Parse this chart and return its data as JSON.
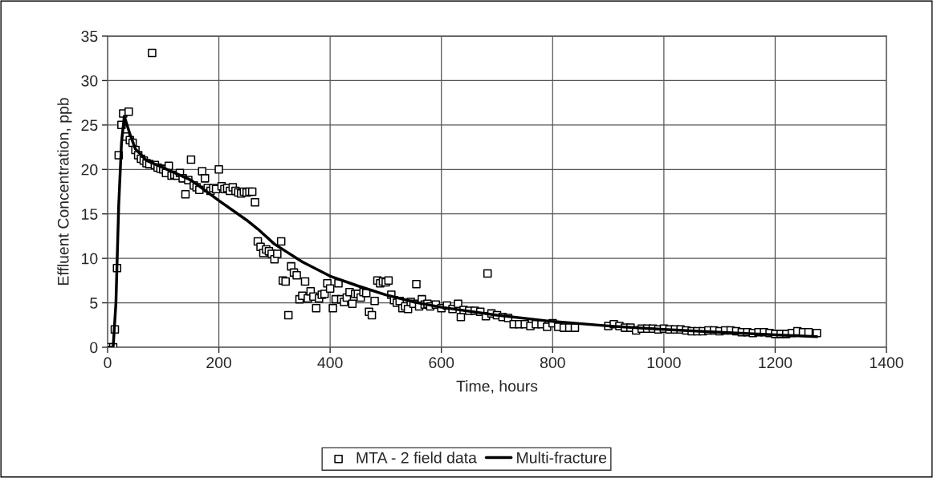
{
  "chart_data": {
    "type": "scatter",
    "xlabel": "Time, hours",
    "ylabel": "Effluent Concentration, ppb",
    "xlim": [
      0,
      1400
    ],
    "xticks": [
      0,
      200,
      400,
      600,
      800,
      1000,
      1200,
      1400
    ],
    "ylim": [
      0,
      35
    ],
    "yticks": [
      0,
      5,
      10,
      15,
      20,
      25,
      30,
      35
    ],
    "grid": true,
    "legend": "bottom",
    "series": [
      {
        "name": "MTA - 2 field data",
        "marker": "square",
        "color": "#000000",
        "x": [
          5,
          10,
          13,
          17,
          20,
          25,
          28,
          32,
          38,
          40,
          45,
          50,
          55,
          60,
          65,
          70,
          75,
          80,
          85,
          90,
          95,
          100,
          105,
          110,
          115,
          120,
          125,
          130,
          135,
          140,
          145,
          150,
          155,
          160,
          165,
          170,
          175,
          180,
          185,
          190,
          195,
          200,
          205,
          210,
          215,
          220,
          225,
          230,
          235,
          240,
          245,
          250,
          255,
          260,
          265,
          270,
          275,
          280,
          285,
          290,
          295,
          300,
          305,
          312,
          315,
          320,
          325,
          330,
          335,
          340,
          345,
          350,
          355,
          360,
          365,
          370,
          375,
          380,
          385,
          390,
          395,
          400,
          405,
          410,
          415,
          420,
          425,
          430,
          435,
          440,
          445,
          450,
          455,
          460,
          465,
          470,
          475,
          480,
          485,
          490,
          495,
          500,
          505,
          510,
          515,
          520,
          525,
          530,
          535,
          540,
          545,
          550,
          555,
          560,
          565,
          570,
          575,
          580,
          590,
          600,
          610,
          620,
          630,
          635,
          640,
          650,
          660,
          670,
          680,
          683,
          690,
          700,
          710,
          720,
          730,
          740,
          750,
          760,
          770,
          780,
          790,
          800,
          810,
          820,
          830,
          840,
          900,
          910,
          920,
          930,
          940,
          950,
          960,
          970,
          980,
          990,
          1000,
          1010,
          1020,
          1030,
          1040,
          1050,
          1060,
          1070,
          1080,
          1090,
          1100,
          1110,
          1120,
          1130,
          1140,
          1150,
          1160,
          1170,
          1180,
          1190,
          1200,
          1210,
          1220,
          1230,
          1240,
          1250,
          1260,
          1275
        ],
        "values": [
          0,
          0,
          2,
          8.9,
          21.6,
          25,
          26.3,
          23.7,
          26.5,
          23.3,
          23,
          22.2,
          21.6,
          21.2,
          21,
          20.7,
          20.6,
          33.1,
          20.5,
          20.2,
          20.1,
          20.0,
          19.6,
          20.4,
          19.3,
          19.4,
          19.3,
          19.6,
          19.0,
          17.2,
          18.8,
          21.1,
          18.2,
          18.0,
          17.7,
          19.8,
          19.0,
          17.9,
          17.6,
          17.9,
          17.8,
          20.0,
          18.1,
          17.8,
          17.9,
          17.6,
          18.0,
          17.6,
          17.4,
          17.3,
          17.5,
          17.4,
          17.5,
          17.5,
          16.3,
          11.9,
          11.3,
          10.6,
          11.0,
          10.8,
          10.5,
          9.9,
          10.5,
          11.9,
          7.5,
          7.4,
          3.6,
          9.1,
          8.4,
          8.1,
          5.4,
          5.8,
          7.4,
          5.5,
          6.3,
          5.7,
          4.4,
          5.5,
          5.9,
          6.0,
          7.2,
          6.6,
          4.4,
          5.4,
          7.2,
          5.4,
          5.1,
          5.6,
          6.2,
          4.9,
          6.0,
          6.0,
          5.6,
          6.2,
          6.1,
          4.0,
          3.6,
          5.2,
          7.5,
          7.2,
          7.4,
          7.3,
          7.5,
          5.9,
          5.3,
          5.0,
          5.2,
          4.4,
          4.6,
          4.3,
          5.1,
          4.9,
          7.1,
          4.6,
          5.4,
          4.8,
          4.9,
          4.6,
          4.8,
          4.4,
          4.7,
          4.3,
          4.9,
          3.4,
          4.2,
          4.1,
          4.1,
          4.0,
          3.5,
          8.3,
          3.8,
          3.6,
          3.4,
          3.3,
          2.6,
          2.6,
          2.6,
          2.4,
          2.6,
          2.6,
          2.3,
          2.7,
          2.3,
          2.2,
          2.2,
          2.2,
          2.4,
          2.6,
          2.4,
          2.2,
          2.2,
          1.9,
          2.1,
          2.1,
          2.1,
          2.0,
          2.1,
          2.0,
          2.0,
          2.0,
          1.9,
          1.8,
          1.8,
          1.8,
          1.9,
          1.9,
          1.8,
          1.9,
          1.9,
          1.8,
          1.7,
          1.7,
          1.6,
          1.7,
          1.7,
          1.6,
          1.5,
          1.5,
          1.5,
          1.6,
          1.8,
          1.7,
          1.7,
          1.6
        ]
      },
      {
        "name": "Multi-fracture",
        "type": "line",
        "marker": "none",
        "line_style": "solid",
        "color": "#000000",
        "x": [
          0,
          10,
          15,
          20,
          25,
          30,
          40,
          50,
          70,
          100,
          150,
          200,
          250,
          270,
          300,
          350,
          400,
          450,
          500,
          550,
          600,
          700,
          800,
          900,
          1000,
          1100,
          1200,
          1275
        ],
        "values": [
          0,
          0,
          5,
          16,
          23,
          26,
          24,
          22.3,
          21,
          20.2,
          18.8,
          16.5,
          14.3,
          13.3,
          11.6,
          9.6,
          8.0,
          6.9,
          5.9,
          5.1,
          4.5,
          3.6,
          2.9,
          2.4,
          2.0,
          1.7,
          1.4,
          1.2
        ]
      }
    ]
  }
}
